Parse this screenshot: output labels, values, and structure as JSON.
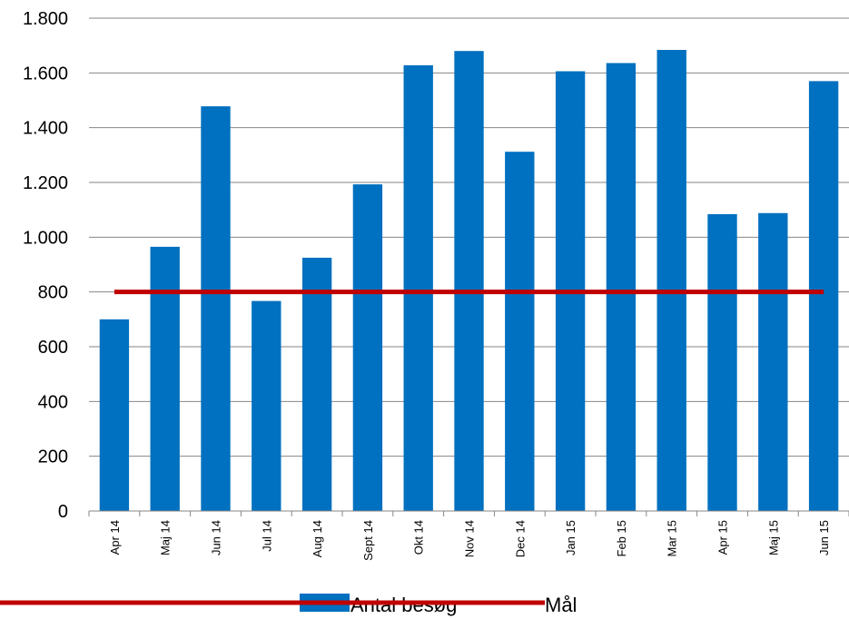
{
  "chart_data": {
    "type": "bar",
    "categories": [
      "Apr 14",
      "Maj 14",
      "Jun 14",
      "Jul 14",
      "Aug 14",
      "Sept 14",
      "Okt 14",
      "Nov 14",
      "Dec 14",
      "Jan 15",
      "Feb 15",
      "Mar 15",
      "Apr 15",
      "Maj 15",
      "Jun 15"
    ],
    "series": [
      {
        "name": "Antal besøg",
        "type": "bar",
        "color": "#0070C0",
        "values": [
          700,
          965,
          1478,
          767,
          925,
          1193,
          1628,
          1680,
          1312,
          1606,
          1636,
          1684,
          1084,
          1088,
          1570
        ]
      },
      {
        "name": "Mål",
        "type": "line",
        "color": "#C00000",
        "values": [
          800,
          800,
          800,
          800,
          800,
          800,
          800,
          800,
          800,
          800,
          800,
          800,
          800,
          800,
          800
        ]
      }
    ],
    "ylim": [
      0,
      1800
    ],
    "yticks": [
      0,
      200,
      400,
      600,
      800,
      1000,
      1200,
      1400,
      1600,
      1800
    ],
    "ytick_labels": [
      "0",
      "200",
      "400",
      "600",
      "800",
      "1.000",
      "1.200",
      "1.400",
      "1.600",
      "1.800"
    ],
    "grid": true,
    "legend_position": "bottom",
    "title": "",
    "xlabel": "",
    "ylabel": ""
  }
}
